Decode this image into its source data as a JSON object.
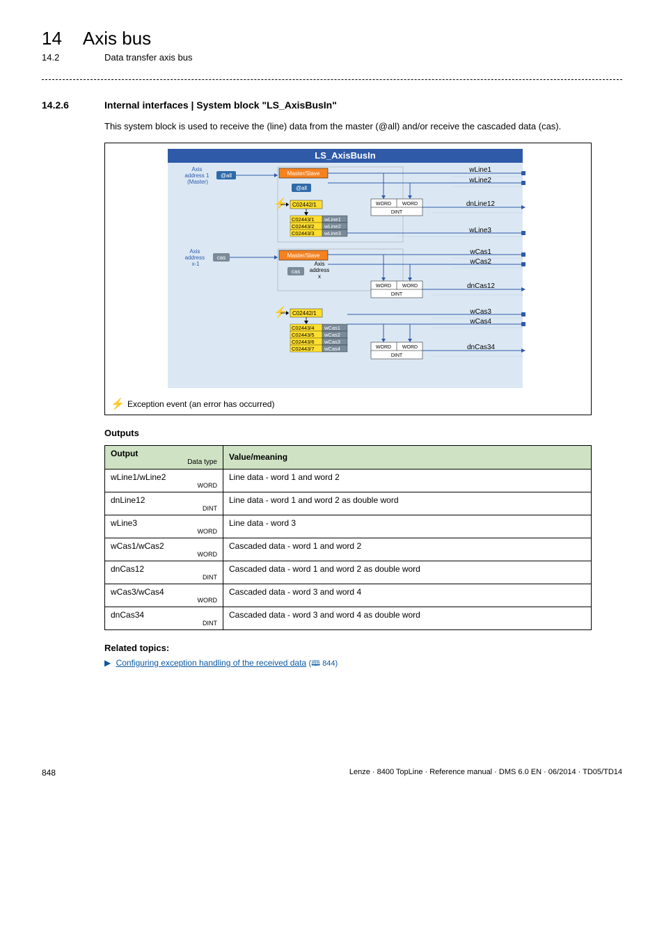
{
  "header": {
    "chapter_number": "14",
    "chapter_title": "Axis bus",
    "subsection_number": "14.2",
    "subsection_title": "Data transfer axis bus"
  },
  "section": {
    "number": "14.2.6",
    "title": "Internal interfaces | System block \"LS_AxisBusIn\""
  },
  "intro_text": "This system block is used to receive the (line) data from the master (@all) and/or receive the cascaded data (cas).",
  "diagram": {
    "title": "LS_AxisBusIn",
    "axis1_label": "Axis\naddress 1\n(Master)",
    "at_all": "@all",
    "at_all2": "@all",
    "master_slave": "Master/Slave",
    "c02442": "C02442/1",
    "c02443_1": "C02443/1",
    "c02443_2": "C02443/2",
    "c02443_3": "C02443/3",
    "w1": "wLine1",
    "w2": "wLine2",
    "w3": "wLine3",
    "word": "WORD",
    "dint": "DINT",
    "axis2_label": "Axis\naddress\nx-1",
    "cas": "cas",
    "cas2": "cas",
    "axis_x": "Axis\naddress\nx",
    "c02443_4": "C02443/4",
    "c02443_5": "C02443/5",
    "c02443_6": "C02443/6",
    "c02443_7": "C02443/7",
    "wc1": "wCas1",
    "wc2": "wCas2",
    "wc3": "wCas3",
    "wc4": "wCas4",
    "out_wLine1": "wLine1",
    "out_wLine2": "wLine2",
    "out_dnLine12": "dnLine12",
    "out_wLine3": "wLine3",
    "out_wCas1": "wCas1",
    "out_wCas2": "wCas2",
    "out_dnCas12": "dnCas12",
    "out_wCas3": "wCas3",
    "out_wCas4": "wCas4",
    "out_dnCas34": "dnCas34",
    "legend_text": "Exception event (an error has occurred)"
  },
  "outputs_heading": "Outputs",
  "outputs_table": {
    "col_output": "Output",
    "col_datatype": "Data type",
    "col_value": "Value/meaning",
    "rows": [
      {
        "name": "wLine1/wLine2",
        "dt": "WORD",
        "val": "Line data - word 1 and word 2"
      },
      {
        "name": "dnLine12",
        "dt": "DINT",
        "val": "Line data - word 1 and word 2 as double word"
      },
      {
        "name": "wLine3",
        "dt": "WORD",
        "val": "Line data - word 3"
      },
      {
        "name": "wCas1/wCas2",
        "dt": "WORD",
        "val": "Cascaded data - word 1 and word 2"
      },
      {
        "name": "dnCas12",
        "dt": "DINT",
        "val": "Cascaded data - word 1 and word 2 as double word"
      },
      {
        "name": "wCas3/wCas4",
        "dt": "WORD",
        "val": "Cascaded data - word 3 and word 4"
      },
      {
        "name": "dnCas34",
        "dt": "DINT",
        "val": "Cascaded data - word 3 and word 4 as double word"
      }
    ]
  },
  "related": {
    "heading": "Related topics:",
    "arrow": "▶",
    "link_text": "Configuring exception handling of the received data",
    "page_ref": "(🕮 844)"
  },
  "footer": {
    "page": "848",
    "right": "Lenze · 8400 TopLine · Reference manual · DMS 6.0 EN · 06/2014 · TD05/TD14"
  },
  "colors": {
    "blue_header": "#2f5aa8",
    "blue_box": "#2f6aa8",
    "orange": "#f58220",
    "yellow": "#ffde2e",
    "gray": "#7a8a99",
    "lightblue_fill": "#dbe8f4",
    "green_th": "#cfe3c4"
  }
}
